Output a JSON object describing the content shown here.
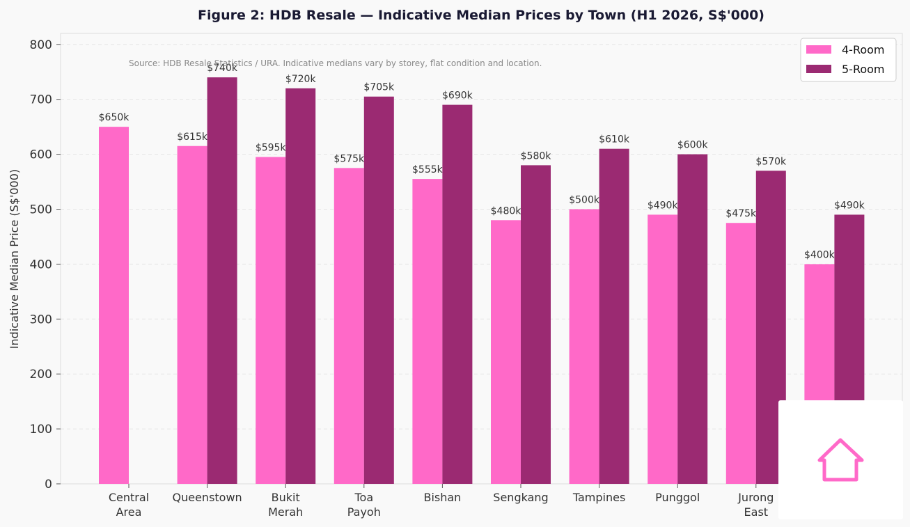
{
  "chart_data": {
    "type": "bar",
    "title": "Figure 2: HDB Resale — Indicative Median Prices by Town (H1 2026, S$'000)",
    "note": "Source: HDB Resale Statistics / URA. Indicative medians vary by storey, flat condition and location.",
    "xlabel": "",
    "ylabel": "Indicative Median Price (S$'000)",
    "ylim": [
      0,
      820
    ],
    "yticks": [
      0,
      100,
      200,
      300,
      400,
      500,
      600,
      700,
      800
    ],
    "grid": true,
    "legend_position": "top-right",
    "categories": [
      [
        "Central",
        "Area"
      ],
      [
        "Queenstown"
      ],
      [
        "Bukit",
        "Merah"
      ],
      [
        "Toa",
        "Payoh"
      ],
      [
        "Bishan"
      ],
      [
        "Sengkang"
      ],
      [
        "Tampines"
      ],
      [
        "Punggol"
      ],
      [
        "Jurong",
        "East"
      ],
      [
        ""
      ]
    ],
    "series": [
      {
        "name": "4-Room",
        "color": "#ff69c8",
        "values": [
          650,
          615,
          595,
          575,
          555,
          480,
          500,
          490,
          475,
          400
        ],
        "labels": [
          "$650k",
          "$615k",
          "$595k",
          "$575k",
          "$555k",
          "$480k",
          "$500k",
          "$490k",
          "$475k",
          "$400k"
        ]
      },
      {
        "name": "5-Room",
        "color": "#9b2a72",
        "values": [
          null,
          740,
          720,
          705,
          690,
          580,
          610,
          600,
          570,
          490
        ],
        "labels": [
          "",
          "$740k",
          "$720k",
          "$705k",
          "$690k",
          "$580k",
          "$610k",
          "$600k",
          "$570k",
          "$490k"
        ]
      }
    ]
  },
  "overlay": {
    "icon": "house-outline-icon",
    "icon_color": "#ff69c8"
  }
}
